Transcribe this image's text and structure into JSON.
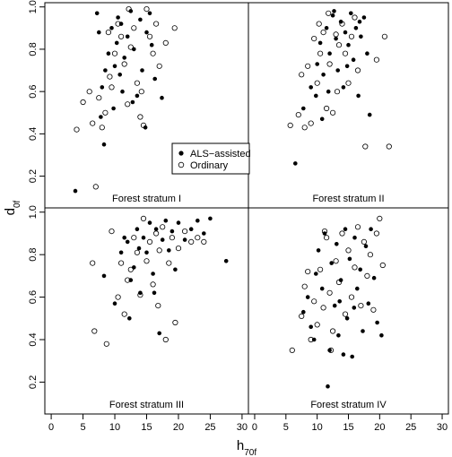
{
  "chart_data": {
    "type": "scatter",
    "xlabel": "h",
    "xlabel_sub": "70f",
    "ylabel": "d",
    "ylabel_sub": "0f",
    "xlim": [
      -1,
      31
    ],
    "ylim": [
      0.05,
      1.02
    ],
    "x_ticks": [
      "0",
      "5",
      "10",
      "15",
      "20",
      "25",
      "30"
    ],
    "y_ticks": [
      "0.2",
      "0.4",
      "0.6",
      "0.8",
      "1.0"
    ],
    "grid": false,
    "legend": {
      "position": "inside-bottom-right of panel I",
      "entries": [
        {
          "label": "ALS−assisted",
          "marker": "filled-circle"
        },
        {
          "label": "Ordinary",
          "marker": "open-circle"
        }
      ]
    },
    "panels": [
      {
        "label": "Forest stratum I",
        "series": [
          {
            "name": "ALS−assisted",
            "points": [
              [
                3.8,
                0.13
              ],
              [
                7.2,
                0.97
              ],
              [
                7.5,
                0.88
              ],
              [
                8,
                0.62
              ],
              [
                8.3,
                0.35
              ],
              [
                8.5,
                0.7
              ],
              [
                9,
                0.78
              ],
              [
                9.5,
                0.9
              ],
              [
                10,
                0.72
              ],
              [
                10.3,
                0.83
              ],
              [
                10.8,
                0.68
              ],
              [
                11,
                0.92
              ],
              [
                11.5,
                0.76
              ],
              [
                12,
                0.86
              ],
              [
                12.5,
                0.98
              ],
              [
                13,
                0.8
              ],
              [
                13.5,
                0.58
              ],
              [
                14,
                0.94
              ],
              [
                14.3,
                0.7
              ],
              [
                14.8,
                0.43
              ],
              [
                15,
                0.88
              ],
              [
                15.5,
                0.97
              ],
              [
                15.8,
                0.82
              ],
              [
                16.3,
                0.66
              ],
              [
                17.4,
                0.57
              ],
              [
                9.8,
                0.52
              ],
              [
                11.2,
                0.6
              ],
              [
                12.8,
                0.55
              ],
              [
                7.8,
                0.48
              ],
              [
                10.5,
                0.95
              ]
            ]
          },
          {
            "name": "Ordinary",
            "points": [
              [
                4,
                0.42
              ],
              [
                5,
                0.55
              ],
              [
                6,
                0.6
              ],
              [
                6.5,
                0.45
              ],
              [
                7,
                0.15
              ],
              [
                7.5,
                0.57
              ],
              [
                8,
                0.43
              ],
              [
                8.5,
                0.5
              ],
              [
                9,
                0.88
              ],
              [
                9.5,
                0.62
              ],
              [
                10,
                0.78
              ],
              [
                10.5,
                0.92
              ],
              [
                11,
                0.86
              ],
              [
                11.5,
                0.73
              ],
              [
                12,
                0.54
              ],
              [
                12.5,
                0.81
              ],
              [
                13,
                0.9
              ],
              [
                13.5,
                0.64
              ],
              [
                14,
                0.48
              ],
              [
                14.5,
                0.44
              ],
              [
                15,
                0.99
              ],
              [
                15.5,
                0.86
              ],
              [
                16,
                0.78
              ],
              [
                16.5,
                0.92
              ],
              [
                17,
                0.72
              ],
              [
                18,
                0.83
              ],
              [
                19.4,
                0.9
              ],
              [
                9.2,
                0.67
              ],
              [
                12.2,
                0.99
              ],
              [
                14.2,
                0.6
              ]
            ]
          }
        ]
      },
      {
        "label": "Forest stratum II",
        "series": [
          {
            "name": "ALS−assisted",
            "points": [
              [
                6.5,
                0.26
              ],
              [
                7.8,
                0.52
              ],
              [
                9,
                0.62
              ],
              [
                10,
                0.73
              ],
              [
                10.5,
                0.83
              ],
              [
                11,
                0.68
              ],
              [
                11.5,
                0.9
              ],
              [
                12,
                0.78
              ],
              [
                12.5,
                0.96
              ],
              [
                13,
                0.85
              ],
              [
                13.3,
                0.7
              ],
              [
                13.8,
                0.93
              ],
              [
                14.2,
                0.62
              ],
              [
                14.5,
                0.88
              ],
              [
                15,
                0.82
              ],
              [
                15.4,
                0.97
              ],
              [
                15.8,
                0.75
              ],
              [
                16.2,
                0.9
              ],
              [
                16.6,
                0.58
              ],
              [
                17,
                0.86
              ],
              [
                17.5,
                0.95
              ],
              [
                18,
                0.78
              ],
              [
                18.4,
                0.49
              ],
              [
                12.7,
                0.98
              ],
              [
                10.8,
                0.47
              ],
              [
                16.8,
                0.93
              ],
              [
                14.8,
                0.72
              ],
              [
                11.8,
                0.6
              ],
              [
                9.8,
                0.58
              ]
            ]
          },
          {
            "name": "Ordinary",
            "points": [
              [
                5.7,
                0.44
              ],
              [
                7,
                0.49
              ],
              [
                7.5,
                0.68
              ],
              [
                8,
                0.43
              ],
              [
                8.5,
                0.72
              ],
              [
                9,
                0.45
              ],
              [
                9.5,
                0.85
              ],
              [
                10,
                0.64
              ],
              [
                10.5,
                0.78
              ],
              [
                11,
                0.88
              ],
              [
                11.5,
                0.52
              ],
              [
                12,
                0.73
              ],
              [
                12.5,
                0.5
              ],
              [
                13,
                0.87
              ],
              [
                13.5,
                0.82
              ],
              [
                14,
                0.92
              ],
              [
                14.5,
                0.78
              ],
              [
                15,
                0.64
              ],
              [
                15.5,
                0.86
              ],
              [
                16,
                0.95
              ],
              [
                16.5,
                0.7
              ],
              [
                17.7,
                0.34
              ],
              [
                19.5,
                0.75
              ],
              [
                21.5,
                0.34
              ],
              [
                20.8,
                0.86
              ],
              [
                13.2,
                0.6
              ],
              [
                10.3,
                0.92
              ],
              [
                11.8,
                0.97
              ]
            ]
          }
        ]
      },
      {
        "label": "Forest stratum III",
        "series": [
          {
            "name": "ALS−assisted",
            "points": [
              [
                8.3,
                0.7
              ],
              [
                10,
                0.57
              ],
              [
                11,
                0.81
              ],
              [
                11.5,
                0.88
              ],
              [
                12,
                0.86
              ],
              [
                12.5,
                0.68
              ],
              [
                13,
                0.74
              ],
              [
                13.5,
                0.92
              ],
              [
                14,
                0.62
              ],
              [
                14.5,
                0.88
              ],
              [
                15,
                0.81
              ],
              [
                15.5,
                0.95
              ],
              [
                16,
                0.71
              ],
              [
                16.5,
                0.92
              ],
              [
                17,
                0.43
              ],
              [
                17.5,
                0.87
              ],
              [
                18,
                0.96
              ],
              [
                18.5,
                0.82
              ],
              [
                19,
                0.91
              ],
              [
                19.5,
                0.73
              ],
              [
                20,
                0.95
              ],
              [
                21,
                0.87
              ],
              [
                22,
                0.92
              ],
              [
                23,
                0.96
              ],
              [
                24,
                0.9
              ],
              [
                25,
                0.97
              ],
              [
                27.5,
                0.77
              ],
              [
                12.3,
                0.5
              ],
              [
                13.8,
                0.83
              ],
              [
                16.2,
                0.62
              ]
            ]
          },
          {
            "name": "Ordinary",
            "points": [
              [
                6.5,
                0.76
              ],
              [
                6.8,
                0.44
              ],
              [
                8.7,
                0.38
              ],
              [
                9.5,
                0.91
              ],
              [
                10.5,
                0.6
              ],
              [
                11,
                0.76
              ],
              [
                11.5,
                0.52
              ],
              [
                12,
                0.68
              ],
              [
                12.5,
                0.73
              ],
              [
                13,
                0.88
              ],
              [
                13.5,
                0.81
              ],
              [
                14,
                0.61
              ],
              [
                14.5,
                0.97
              ],
              [
                15,
                0.77
              ],
              [
                15.5,
                0.86
              ],
              [
                16,
                0.66
              ],
              [
                16.5,
                0.9
              ],
              [
                17,
                0.82
              ],
              [
                17.5,
                0.93
              ],
              [
                18,
                0.4
              ],
              [
                18.5,
                0.76
              ],
              [
                19,
                0.88
              ],
              [
                19.5,
                0.48
              ],
              [
                20,
                0.83
              ],
              [
                21,
                0.91
              ],
              [
                22,
                0.86
              ],
              [
                23,
                0.88
              ],
              [
                24,
                0.86
              ],
              [
                16.8,
                0.56
              ]
            ]
          }
        ]
      },
      {
        "label": "Forest stratum IV",
        "series": [
          {
            "name": "ALS−assisted",
            "points": [
              [
                7.8,
                0.53
              ],
              [
                8.5,
                0.6
              ],
              [
                9,
                0.46
              ],
              [
                9.8,
                0.71
              ],
              [
                10.2,
                0.82
              ],
              [
                10.8,
                0.64
              ],
              [
                11.2,
                0.9
              ],
              [
                11.7,
                0.18
              ],
              [
                12,
                0.35
              ],
              [
                12.3,
                0.76
              ],
              [
                12.8,
                0.56
              ],
              [
                13.1,
                0.85
              ],
              [
                13.4,
                0.42
              ],
              [
                13.8,
                0.68
              ],
              [
                14.2,
                0.33
              ],
              [
                14.5,
                0.92
              ],
              [
                14.8,
                0.5
              ],
              [
                15.2,
                0.78
              ],
              [
                15.6,
                0.32
              ],
              [
                16,
                0.88
              ],
              [
                16.4,
                0.64
              ],
              [
                16.9,
                0.73
              ],
              [
                17.3,
                0.44
              ],
              [
                17.8,
                0.84
              ],
              [
                18.2,
                0.57
              ],
              [
                18.6,
                0.92
              ],
              [
                19.1,
                0.69
              ],
              [
                19.6,
                0.48
              ],
              [
                20.3,
                0.42
              ],
              [
                9.5,
                0.4
              ],
              [
                13.6,
                0.58
              ],
              [
                15.9,
                0.55
              ]
            ]
          },
          {
            "name": "Ordinary",
            "points": [
              [
                6,
                0.35
              ],
              [
                7.5,
                0.51
              ],
              [
                8,
                0.65
              ],
              [
                8.5,
                0.72
              ],
              [
                9,
                0.4
              ],
              [
                9.5,
                0.58
              ],
              [
                10,
                0.47
              ],
              [
                10.5,
                0.73
              ],
              [
                11,
                0.55
              ],
              [
                11.5,
                0.88
              ],
              [
                12,
                0.62
              ],
              [
                12.5,
                0.44
              ],
              [
                13,
                0.77
              ],
              [
                13.5,
                0.67
              ],
              [
                14,
                0.9
              ],
              [
                14.5,
                0.52
              ],
              [
                15,
                0.82
              ],
              [
                15.5,
                0.6
              ],
              [
                16,
                0.74
              ],
              [
                16.5,
                0.93
              ],
              [
                17,
                0.56
              ],
              [
                17.5,
                0.86
              ],
              [
                18,
                0.7
              ],
              [
                18.5,
                0.8
              ],
              [
                19,
                0.54
              ],
              [
                19.5,
                0.9
              ],
              [
                20,
                0.97
              ],
              [
                20.5,
                0.75
              ],
              [
                12.2,
                0.35
              ],
              [
                11.2,
                0.91
              ]
            ]
          }
        ]
      }
    ]
  }
}
